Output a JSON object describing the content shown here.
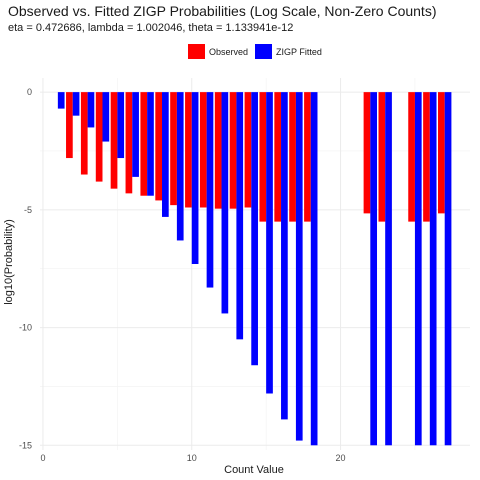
{
  "chart_data": {
    "type": "bar",
    "title": "Observed vs. Fitted ZIGP Probabilities (Log Scale, Non-Zero Counts)",
    "subtitle": "eta = 0.472686, lambda = 1.002046, theta = 1.133941e-12",
    "xlabel": "Count Value",
    "ylabel": "log10(Probability)",
    "xlim": [
      -0.2,
      28.7
    ],
    "ylim": [
      -15.2,
      0.6
    ],
    "x_ticks": [
      0,
      10,
      20
    ],
    "y_ticks": [
      0,
      -5,
      -10,
      -15
    ],
    "grid": true,
    "legend_position": "top",
    "series": [
      {
        "name": "Observed",
        "color": "#ff0000",
        "points": [
          {
            "x": 2,
            "y": -2.8
          },
          {
            "x": 3,
            "y": -3.5
          },
          {
            "x": 4,
            "y": -3.8
          },
          {
            "x": 5,
            "y": -4.1
          },
          {
            "x": 6,
            "y": -4.3
          },
          {
            "x": 7,
            "y": -4.4
          },
          {
            "x": 8,
            "y": -4.6
          },
          {
            "x": 9,
            "y": -4.8
          },
          {
            "x": 10,
            "y": -4.9
          },
          {
            "x": 11,
            "y": -4.9
          },
          {
            "x": 12,
            "y": -4.95
          },
          {
            "x": 13,
            "y": -4.95
          },
          {
            "x": 14,
            "y": -4.9
          },
          {
            "x": 15,
            "y": -5.5
          },
          {
            "x": 16,
            "y": -5.5
          },
          {
            "x": 17,
            "y": -5.5
          },
          {
            "x": 18,
            "y": -5.5
          },
          {
            "x": 22,
            "y": -5.15
          },
          {
            "x": 23,
            "y": -5.5
          },
          {
            "x": 25,
            "y": -5.5
          },
          {
            "x": 26,
            "y": -5.5
          },
          {
            "x": 27,
            "y": -5.15
          }
        ]
      },
      {
        "name": "ZIGP Fitted",
        "color": "#0000ff",
        "points": [
          {
            "x": 1,
            "y": -0.7
          },
          {
            "x": 2,
            "y": -1.0
          },
          {
            "x": 3,
            "y": -1.5
          },
          {
            "x": 4,
            "y": -2.1
          },
          {
            "x": 5,
            "y": -2.8
          },
          {
            "x": 6,
            "y": -3.6
          },
          {
            "x": 7,
            "y": -4.4
          },
          {
            "x": 8,
            "y": -5.3
          },
          {
            "x": 9,
            "y": -6.3
          },
          {
            "x": 10,
            "y": -7.3
          },
          {
            "x": 11,
            "y": -8.3
          },
          {
            "x": 12,
            "y": -9.4
          },
          {
            "x": 13,
            "y": -10.5
          },
          {
            "x": 14,
            "y": -11.6
          },
          {
            "x": 15,
            "y": -12.8
          },
          {
            "x": 16,
            "y": -13.9
          },
          {
            "x": 17,
            "y": -14.8
          },
          {
            "x": 18,
            "y": -15.0
          },
          {
            "x": 22,
            "y": -15.0
          },
          {
            "x": 23,
            "y": -15.0
          },
          {
            "x": 25,
            "y": -15.0
          },
          {
            "x": 26,
            "y": -15.0
          },
          {
            "x": 27,
            "y": -15.0
          }
        ]
      }
    ]
  }
}
